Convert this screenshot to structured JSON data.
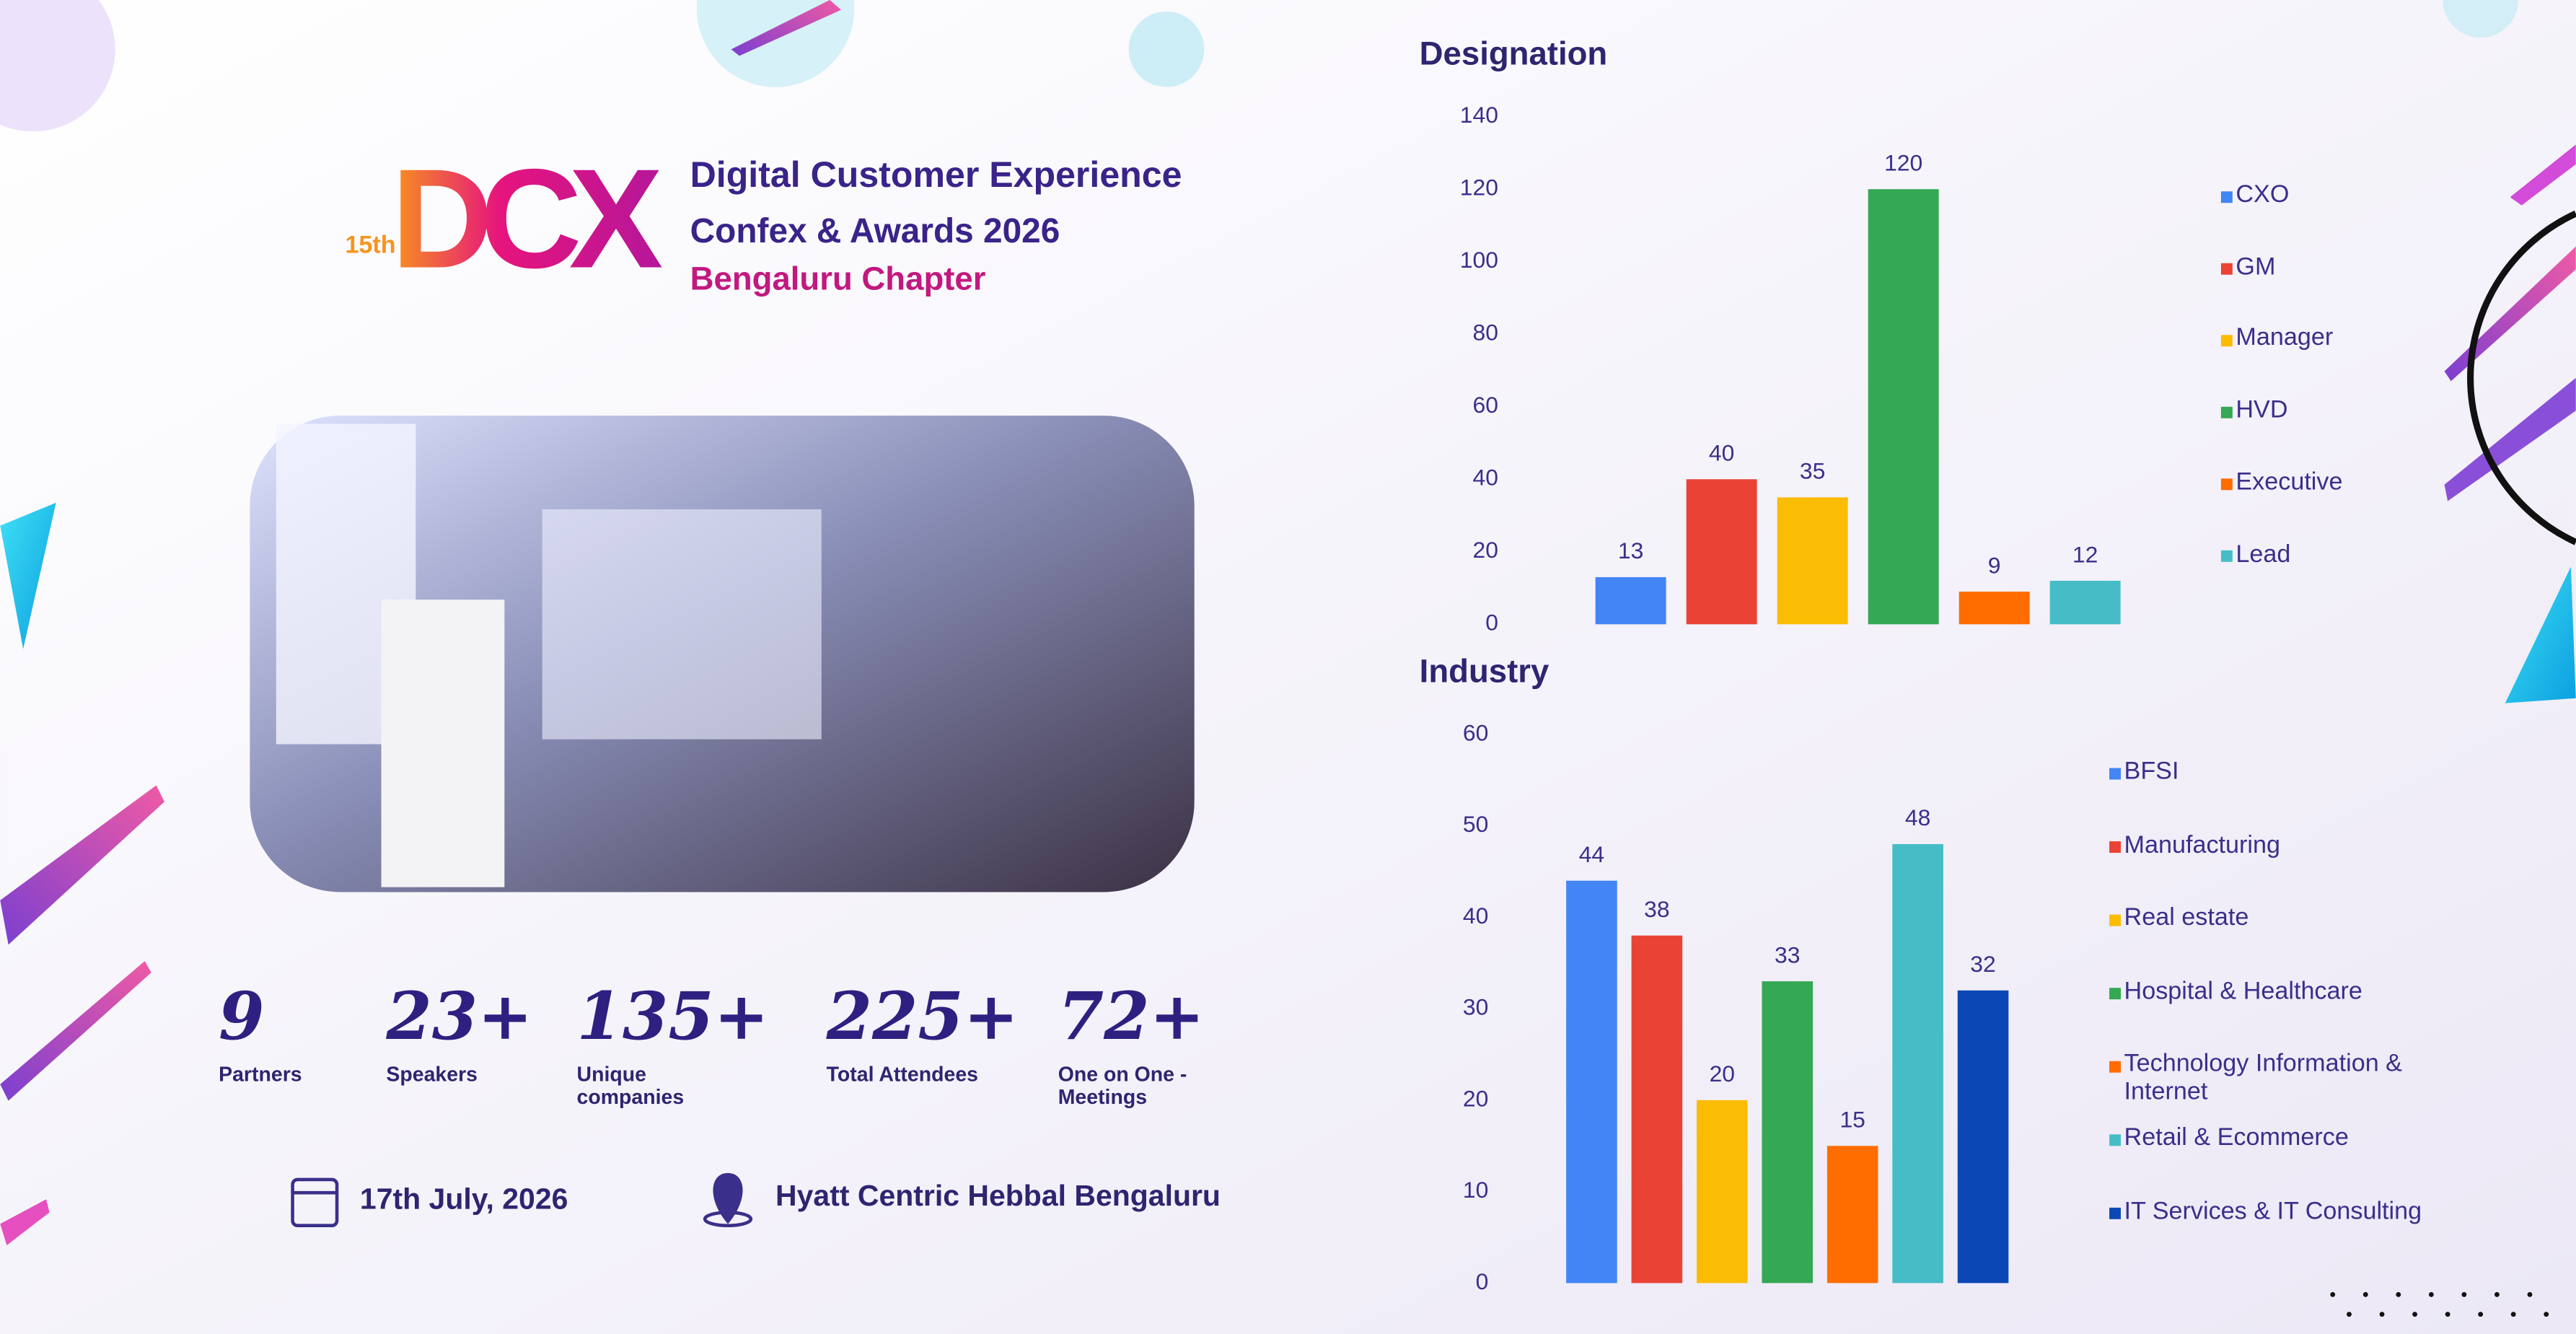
{
  "header": {
    "edition": "15th",
    "logo": "DCX",
    "title_line1": "Digital Customer Experience",
    "title_line2": "Confex & Awards 2026",
    "subtitle": "Bengaluru Chapter"
  },
  "stats": [
    {
      "value": "9",
      "label": "Partners"
    },
    {
      "value": "23+",
      "label": "Speakers"
    },
    {
      "value": "135+",
      "label": "Unique companies"
    },
    {
      "value": "225+",
      "label": "Total Attendees"
    },
    {
      "value": "72+",
      "label": "One on One - Meetings"
    }
  ],
  "event": {
    "date": "17th July, 2026",
    "venue": "Hyatt Centric Hebbal Bengaluru"
  },
  "chart_data": [
    {
      "type": "bar",
      "title": "Designation",
      "categories": [
        "CXO",
        "GM",
        "Manager",
        "HVD",
        "Executive",
        "Lead"
      ],
      "values": [
        13,
        40,
        35,
        120,
        9,
        12
      ],
      "colors": [
        "#4285f4",
        "#ea4335",
        "#fbbc04",
        "#34a853",
        "#ff6d01",
        "#46bdc6"
      ],
      "ylim": [
        0,
        140
      ],
      "yticks": [
        0,
        20,
        40,
        60,
        80,
        100,
        120,
        140
      ],
      "grid": false,
      "legend": "right"
    },
    {
      "type": "bar",
      "title": "Industry",
      "categories": [
        "BFSI",
        "Manufacturing",
        "Real estate",
        "Hospital & Healthcare",
        "Technology Information & Internet",
        "Retail & Ecommerce",
        "IT Services & IT Consulting"
      ],
      "values": [
        44,
        38,
        20,
        33,
        15,
        48,
        32
      ],
      "colors": [
        "#4285f4",
        "#ea4335",
        "#fbbc04",
        "#34a853",
        "#ff6d01",
        "#46bdc6",
        "#0b48b5"
      ],
      "ylim": [
        0,
        60
      ],
      "yticks": [
        0,
        10,
        20,
        30,
        40,
        50,
        60
      ],
      "grid": false,
      "legend": "right"
    }
  ]
}
